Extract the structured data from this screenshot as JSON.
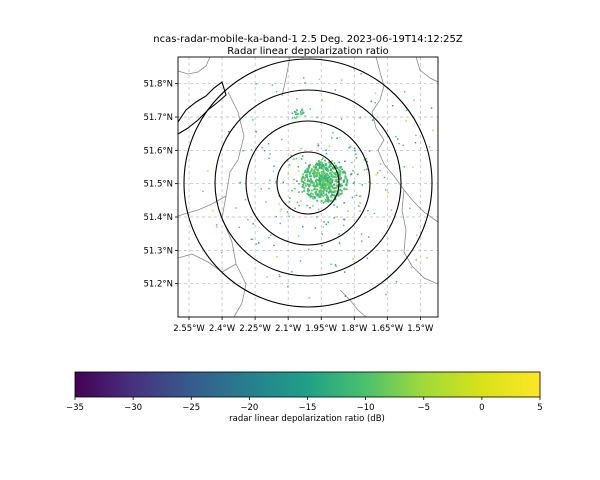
{
  "title": {
    "line1": "ncas-radar-mobile-ka-band-1 2.5 Deg. 2023-06-19T14:12:25Z",
    "line2": "Radar linear depolarization ratio"
  },
  "map": {
    "lon_range": [
      -2.6,
      -1.42
    ],
    "lat_range": [
      51.1,
      51.88
    ],
    "x_ticks": [
      {
        "lon": -2.55,
        "label": "2.55°W"
      },
      {
        "lon": -2.4,
        "label": "2.4°W"
      },
      {
        "lon": -2.25,
        "label": "2.25°W"
      },
      {
        "lon": -2.1,
        "label": "2.1°W"
      },
      {
        "lon": -1.95,
        "label": "1.95°W"
      },
      {
        "lon": -1.8,
        "label": "1.8°W"
      },
      {
        "lon": -1.65,
        "label": "1.65°W"
      },
      {
        "lon": -1.5,
        "label": "1.5°W"
      }
    ],
    "y_ticks": [
      {
        "lat": 51.2,
        "label": "51.2°N"
      },
      {
        "lat": 51.3,
        "label": "51.3°N"
      },
      {
        "lat": 51.4,
        "label": "51.4°N"
      },
      {
        "lat": 51.5,
        "label": "51.5°N"
      },
      {
        "lat": 51.6,
        "label": "51.6°N"
      },
      {
        "lat": 51.7,
        "label": "51.7°N"
      },
      {
        "lat": 51.8,
        "label": "51.8°N"
      }
    ],
    "gridlines": true,
    "radar_center": {
      "lon": -1.94,
      "lat": 51.51
    },
    "range_rings_km": [
      10,
      20,
      30,
      40
    ]
  },
  "colorbar": {
    "label": "radar linear depolarization ratio (dB)",
    "colormap": "viridis",
    "range": [
      -35,
      5
    ],
    "ticks": [
      "-35",
      "-30",
      "-25",
      "-20",
      "-15",
      "-10",
      "-5",
      "0",
      "5"
    ]
  }
}
